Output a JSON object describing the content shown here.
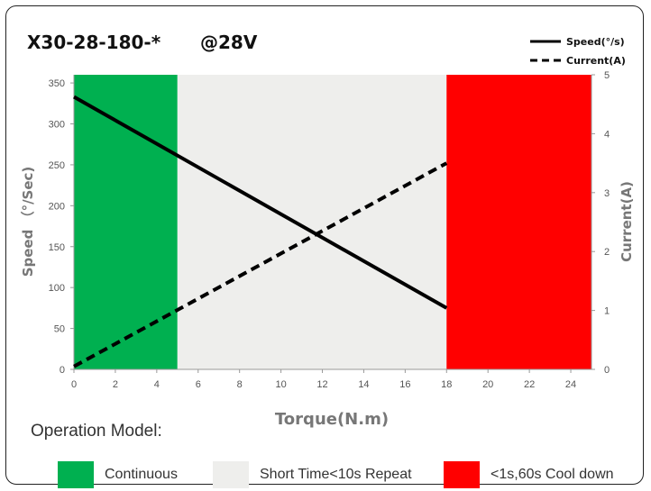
{
  "chart_data": {
    "type": "line",
    "title": "X30-28-180-*",
    "subtitle": "@28V",
    "xlabel": "Torque(N.m)",
    "ylabel": "Speed （°/Sec)",
    "y2label": "Current(A)",
    "xlim": [
      0,
      25
    ],
    "ylim": [
      0,
      360
    ],
    "y2lim": [
      0,
      5
    ],
    "x_ticks": [
      0,
      2,
      4,
      6,
      8,
      10,
      12,
      14,
      16,
      18,
      20,
      22,
      24
    ],
    "y_ticks": [
      0,
      50,
      100,
      150,
      200,
      250,
      300,
      350
    ],
    "y2_ticks": [
      0,
      1,
      2,
      3,
      4,
      5
    ],
    "grid": false,
    "legend_position": "top-right",
    "regions": [
      {
        "name": "Continuous",
        "x_start": 0,
        "x_end": 5,
        "color": "#00b050"
      },
      {
        "name": "Short Time<10s Repeat",
        "x_start": 5,
        "x_end": 18,
        "color": "#eeeeec"
      },
      {
        "name": "<1s,60s Cool down",
        "x_start": 18,
        "x_end": 25,
        "color": "#ff0000"
      }
    ],
    "series": [
      {
        "name": "Speed(°/s)",
        "axis": "left",
        "style": "solid",
        "x": [
          0,
          18
        ],
        "y": [
          333,
          75
        ]
      },
      {
        "name": "Current(A)",
        "axis": "right",
        "style": "dashed",
        "x": [
          0,
          18
        ],
        "y": [
          0.05,
          3.5
        ]
      }
    ]
  },
  "operation": {
    "title": "Operation Model:",
    "items": [
      {
        "label": "Continuous",
        "color": "#00b050"
      },
      {
        "label": "Short Time<10s Repeat",
        "color": "#eeeeec"
      },
      {
        "label": "<1s,60s Cool down",
        "color": "#ff0000"
      }
    ]
  }
}
